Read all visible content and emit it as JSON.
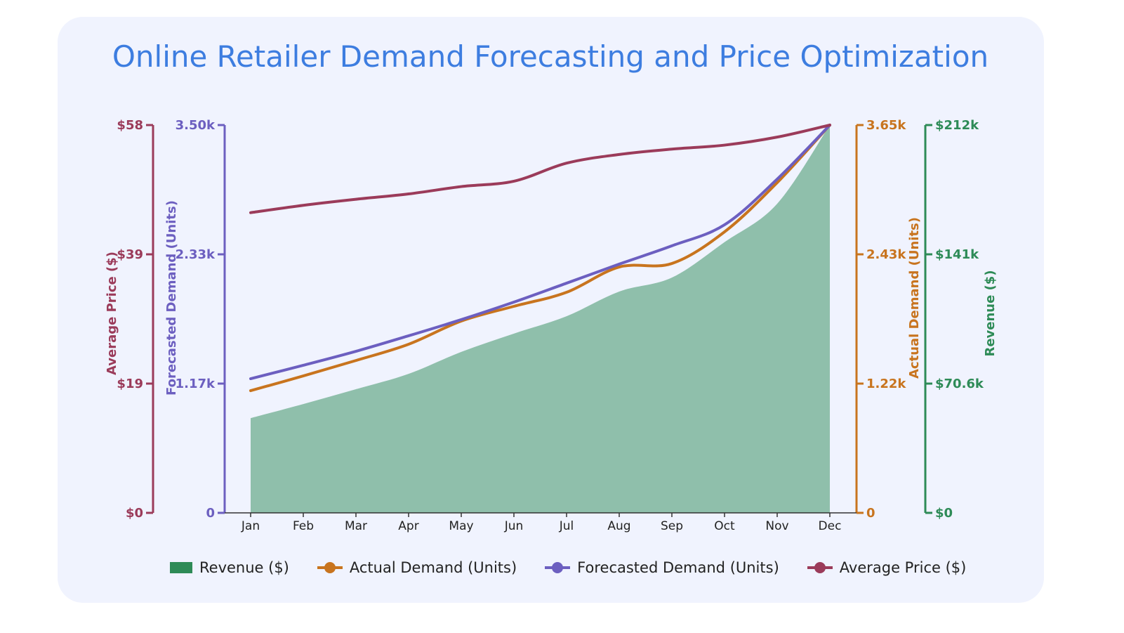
{
  "chart_data": {
    "type": "line",
    "title": "Online Retailer Demand Forecasting and Price Optimization",
    "categories": [
      "Jan",
      "Feb",
      "Mar",
      "Apr",
      "May",
      "Jun",
      "Jul",
      "Aug",
      "Sep",
      "Oct",
      "Nov",
      "Dec"
    ],
    "series": [
      {
        "name": "Revenue ($)",
        "type": "area",
        "axis": "Revenue ($)",
        "color": "#2e8b57",
        "values": [
          51800,
          59500,
          67600,
          76000,
          88000,
          98000,
          107500,
          121000,
          128600,
          148000,
          169000,
          212000
        ]
      },
      {
        "name": "Actual Demand (Units)",
        "type": "line",
        "axis": "Actual Demand (Units)",
        "color": "#c8741e",
        "values": [
          1150,
          1289,
          1434,
          1587,
          1805,
          1944,
          2076,
          2314,
          2347,
          2645,
          3108,
          3650
        ]
      },
      {
        "name": "Forecasted Demand (Units)",
        "type": "line",
        "axis": "Forecasted Demand (Units)",
        "color": "#6c5fc0",
        "values": [
          1211,
          1332,
          1458,
          1598,
          1744,
          1902,
          2073,
          2245,
          2410,
          2600,
          3012,
          3500
        ]
      },
      {
        "name": "Average Price ($)",
        "type": "line",
        "axis": "Average Price ($)",
        "color": "#9b3b5a",
        "values": [
          44.9,
          46.0,
          46.9,
          47.7,
          48.8,
          49.6,
          52.3,
          53.6,
          54.4,
          55.0,
          56.2,
          58.0
        ]
      }
    ],
    "axes": [
      {
        "label": "Average Price ($)",
        "side": "left-outer",
        "color": "#9b3b5a",
        "range": [
          0,
          58
        ],
        "ticks": [
          "$0",
          "$19",
          "$39",
          "$58"
        ]
      },
      {
        "label": "Forecasted Demand (Units)",
        "side": "left",
        "color": "#6c5fc0",
        "range": [
          0,
          3500
        ],
        "ticks": [
          "0",
          "1.17k",
          "2.33k",
          "3.50k"
        ]
      },
      {
        "label": "Actual Demand (Units)",
        "side": "right",
        "color": "#c8741e",
        "range": [
          0,
          3650
        ],
        "ticks": [
          "0",
          "1.22k",
          "2.43k",
          "3.65k"
        ]
      },
      {
        "label": "Revenue ($)",
        "side": "right-outer",
        "color": "#2e8b57",
        "range": [
          0,
          212000
        ],
        "ticks": [
          "$0",
          "$70.6k",
          "$141k",
          "$212k"
        ]
      }
    ],
    "legend_position": "bottom",
    "grid": false
  }
}
